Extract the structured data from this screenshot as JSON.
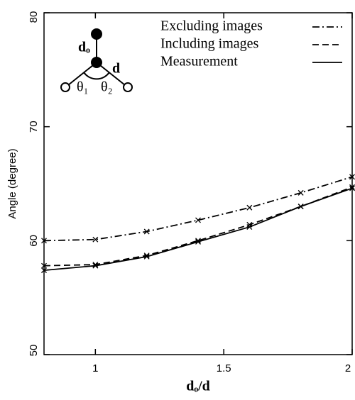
{
  "chart_data": {
    "type": "line",
    "x_label": "dₒ/d",
    "y_label": "Angle (degree)",
    "x": [
      0.8,
      1.0,
      1.2,
      1.4,
      1.6,
      1.8,
      2.0
    ],
    "series": [
      {
        "name": "Excluding images",
        "color": "#000000",
        "dash": "dashdot",
        "marker": "x",
        "values": [
          60.0,
          60.1,
          60.8,
          61.8,
          62.9,
          64.2,
          65.6
        ]
      },
      {
        "name": "Including images",
        "color": "#000000",
        "dash": "dashed",
        "marker": "x",
        "values": [
          57.8,
          57.9,
          58.7,
          60.0,
          61.4,
          63.0,
          64.7
        ]
      },
      {
        "name": "Measurement",
        "color": "#000000",
        "dash": "solid",
        "marker": "x",
        "values": [
          57.4,
          57.8,
          58.6,
          59.9,
          61.2,
          63.0,
          64.6
        ]
      }
    ],
    "xlim": [
      0.8,
      2.0
    ],
    "xticks": [
      1,
      1.5,
      2
    ],
    "ylim": [
      50,
      80
    ],
    "yticks": [
      50,
      60,
      70,
      80
    ],
    "inset_labels": [
      "dₒ",
      "d",
      "θ₁",
      "θ₂"
    ]
  }
}
